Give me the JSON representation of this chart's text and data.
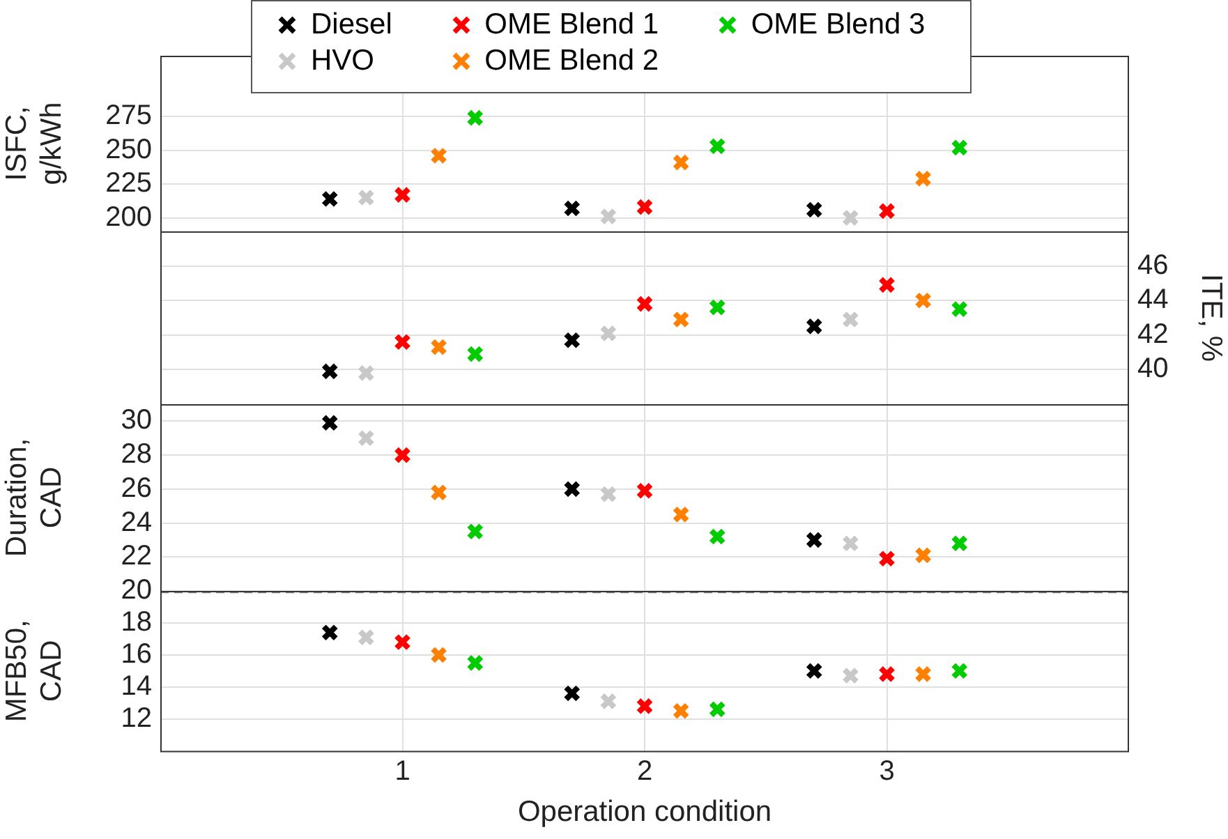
{
  "chart_data": [
    {
      "type": "scatter",
      "ylabel": "ISFC, g/kWh",
      "xlim": [
        0,
        4
      ],
      "xticks": [
        1,
        2,
        3
      ],
      "ylim": [
        190,
        320
      ],
      "yticks": [
        200,
        225,
        250,
        275
      ],
      "grid": true,
      "legend": "top",
      "tick_labels": "y",
      "marker": "cross",
      "series": [
        {
          "name": "Diesel",
          "color": "#000000",
          "x": [
            0.7,
            1.7,
            2.7
          ],
          "values": [
            214,
            207,
            206
          ]
        },
        {
          "name": "HVO",
          "color": "#c8c8c8",
          "x": [
            0.85,
            1.85,
            2.85
          ],
          "values": [
            215,
            201,
            200
          ]
        },
        {
          "name": "OME Blend 1",
          "color": "#ff0000",
          "x": [
            1,
            2,
            3
          ],
          "values": [
            217,
            208,
            205
          ]
        },
        {
          "name": "OME Blend 2",
          "color": "#ff8000",
          "x": [
            1.15,
            2.15,
            3.15
          ],
          "values": [
            246,
            241,
            229
          ]
        },
        {
          "name": "OME Blend 3",
          "color": "#00cc00",
          "x": [
            1.3,
            2.3,
            3.3
          ],
          "values": [
            274,
            253,
            252
          ]
        }
      ]
    },
    {
      "type": "scatter",
      "y2label": "ITE, %",
      "xlim": [
        0,
        4
      ],
      "xticks": [
        1,
        2,
        3
      ],
      "y2lim": [
        38,
        48
      ],
      "y2ticks": [
        40,
        42,
        44,
        46
      ],
      "grid": true,
      "tick_labels": "y",
      "marker": "cross",
      "series": [
        {
          "color": "#000000",
          "axis": "y2",
          "x": [
            0.7,
            1.7,
            2.7
          ],
          "values": [
            39.9,
            41.7,
            42.5
          ]
        },
        {
          "color": "#c8c8c8",
          "axis": "y2",
          "x": [
            0.85,
            1.85,
            2.85
          ],
          "values": [
            39.8,
            42.1,
            42.9
          ]
        },
        {
          "color": "#ff0000",
          "axis": "y2",
          "x": [
            1,
            2,
            3
          ],
          "values": [
            41.6,
            43.8,
            44.9
          ]
        },
        {
          "color": "#ff8000",
          "axis": "y2",
          "x": [
            1.15,
            2.15,
            3.15
          ],
          "values": [
            41.3,
            42.9,
            44.0
          ]
        },
        {
          "color": "#00cc00",
          "axis": "y2",
          "x": [
            1.3,
            2.3,
            3.3
          ],
          "values": [
            40.9,
            43.6,
            43.5
          ]
        }
      ]
    },
    {
      "type": "scatter",
      "ylabel": "Duration, CAD",
      "xlim": [
        0,
        4
      ],
      "xticks": [
        1,
        2,
        3
      ],
      "ylim": [
        20,
        31
      ],
      "yticks": [
        20,
        22,
        24,
        26,
        28,
        30
      ],
      "grid": true,
      "tick_labels": "y",
      "marker": "cross",
      "series": [
        {
          "color": "#000000",
          "x": [
            0.7,
            1.7,
            2.7
          ],
          "values": [
            29.9,
            26,
            23
          ]
        },
        {
          "color": "#c8c8c8",
          "x": [
            0.85,
            1.85,
            2.85
          ],
          "values": [
            29,
            25.7,
            22.8
          ]
        },
        {
          "color": "#ff0000",
          "x": [
            1,
            2,
            3
          ],
          "values": [
            28,
            25.9,
            21.9
          ]
        },
        {
          "color": "#ff8000",
          "x": [
            1.15,
            2.15,
            3.15
          ],
          "values": [
            25.8,
            24.5,
            22.1
          ]
        },
        {
          "color": "#00cc00",
          "x": [
            1.3,
            2.3,
            3.3
          ],
          "values": [
            23.5,
            23.2,
            22.8
          ]
        }
      ]
    },
    {
      "type": "scatter",
      "ylabel": "MFB50, CAD",
      "xlabel": "Operation condition",
      "xlim": [
        0,
        4
      ],
      "xticks": [
        1,
        2,
        3
      ],
      "ylim": [
        10,
        20
      ],
      "yticks": [
        12,
        14,
        16,
        18
      ],
      "grid": true,
      "marker": "cross",
      "ref_lines": [
        {
          "axis": "y",
          "value": 20,
          "color": "#808080",
          "line_style": "dashed"
        }
      ],
      "series": [
        {
          "color": "#000000",
          "x": [
            0.7,
            1.7,
            2.7
          ],
          "values": [
            17.4,
            13.6,
            15
          ]
        },
        {
          "color": "#c8c8c8",
          "x": [
            0.85,
            1.85,
            2.85
          ],
          "values": [
            17.1,
            13.1,
            14.7
          ]
        },
        {
          "color": "#ff0000",
          "x": [
            1,
            2,
            3
          ],
          "values": [
            16.8,
            12.8,
            14.8
          ]
        },
        {
          "color": "#ff8000",
          "x": [
            1.15,
            2.15,
            3.15
          ],
          "values": [
            16,
            12.5,
            14.8
          ]
        },
        {
          "color": "#00cc00",
          "x": [
            1.3,
            2.3,
            3.3
          ],
          "values": [
            15.5,
            12.6,
            15
          ]
        }
      ]
    }
  ]
}
